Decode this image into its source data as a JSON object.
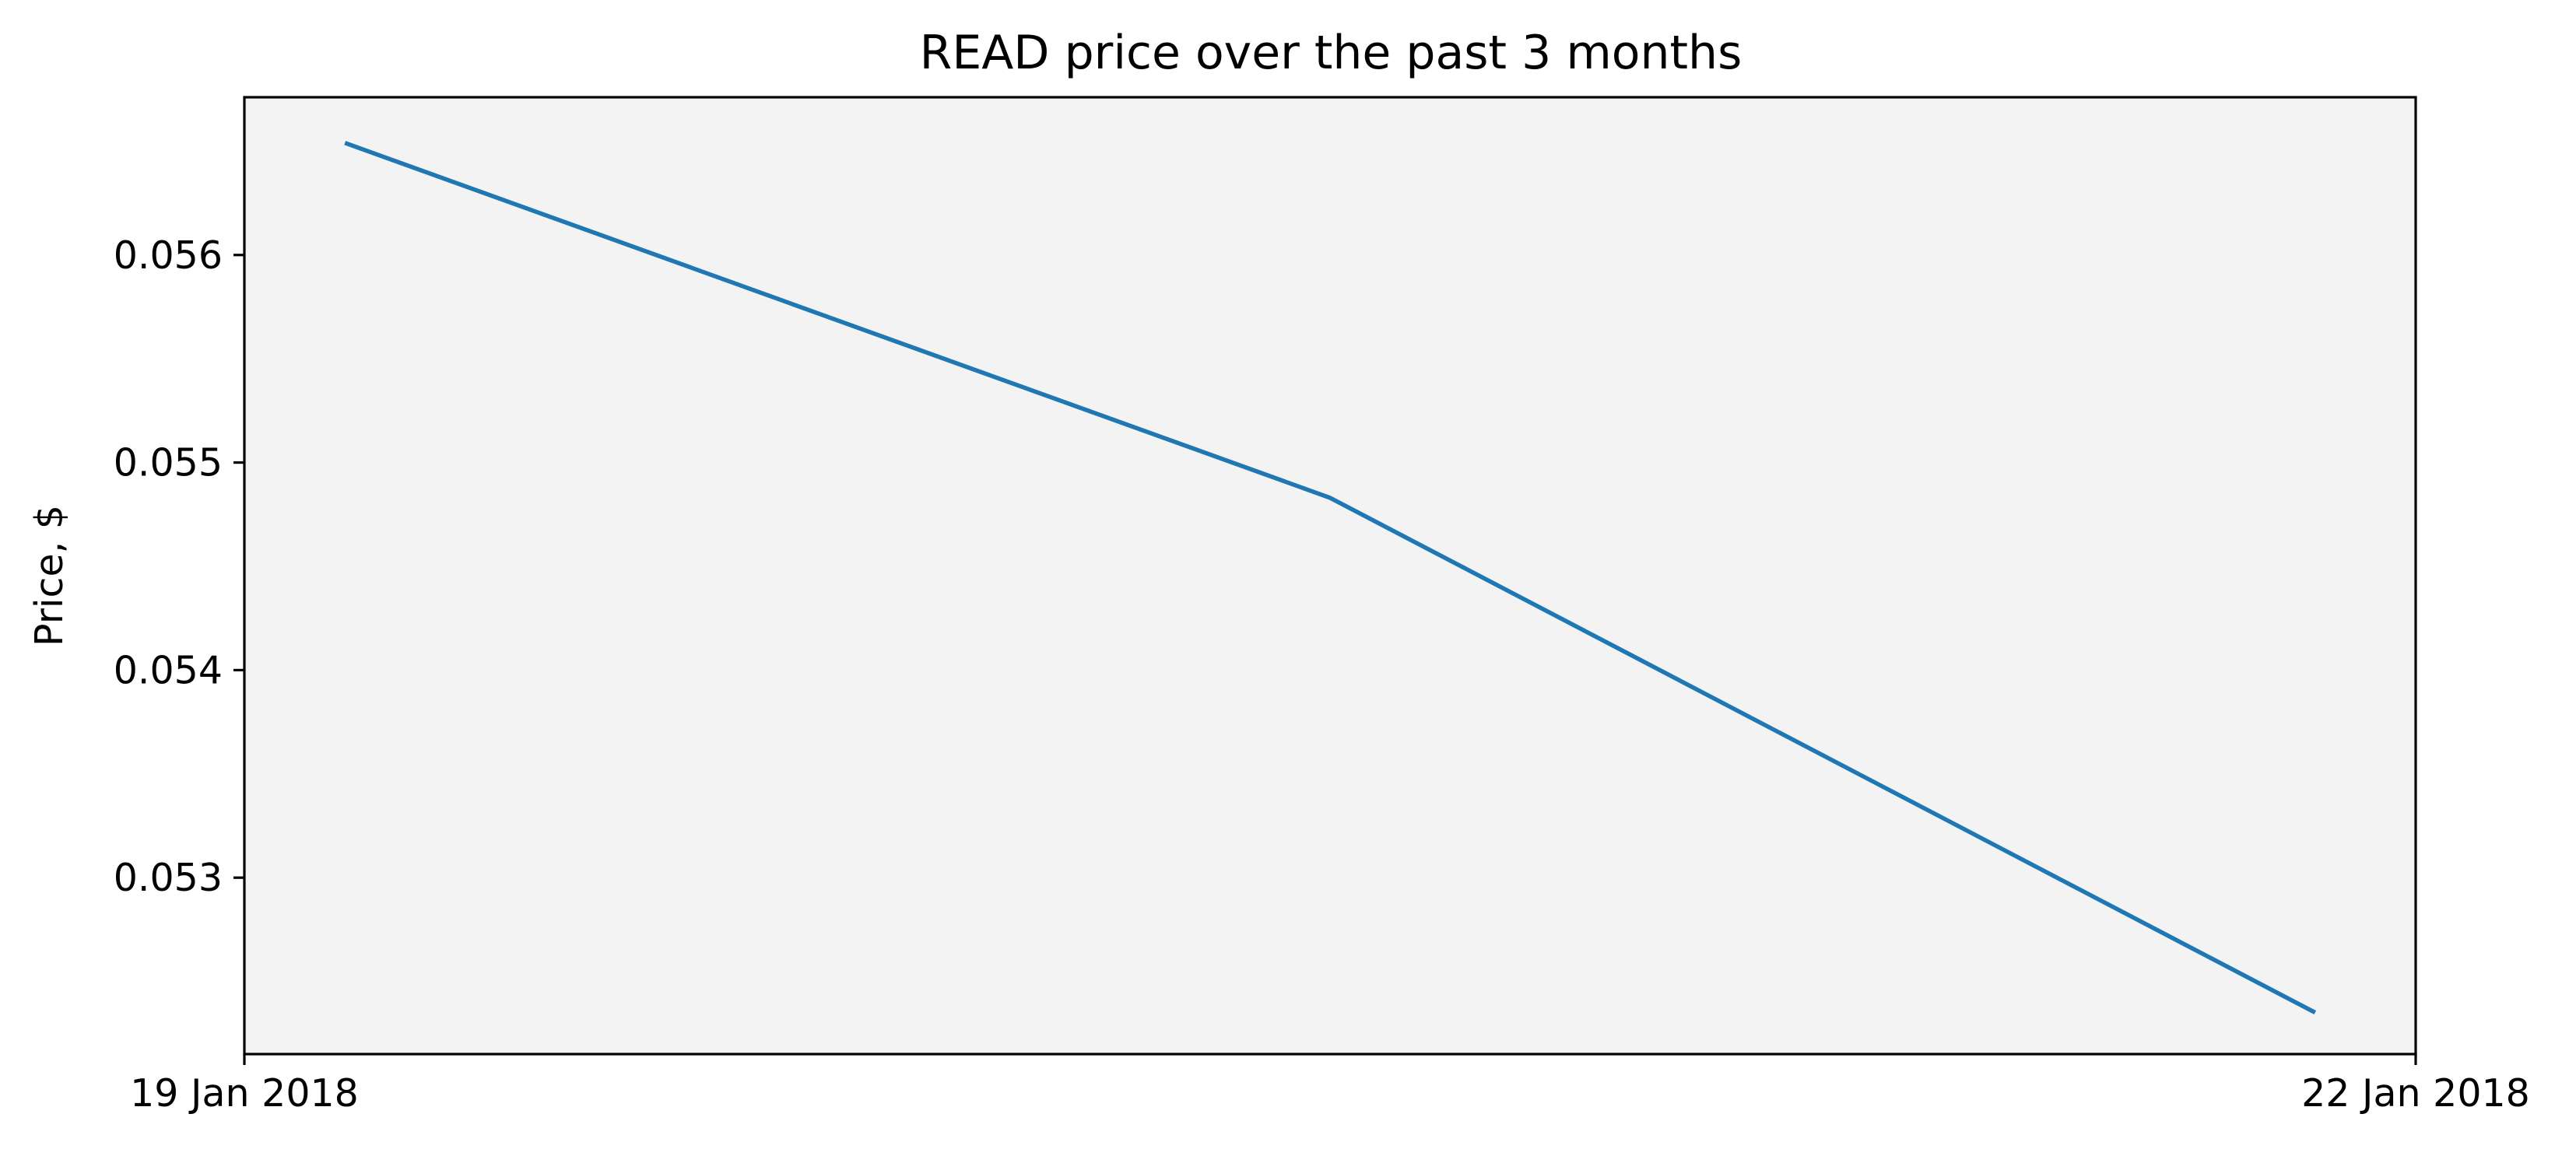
{
  "chart_data": {
    "type": "line",
    "title": "READ price over the past 3 months",
    "xlabel": "",
    "ylabel": "Price, $",
    "x_ticks": [
      "19 Jan 2018",
      "22 Jan 2018"
    ],
    "x_dates": [
      "2018-01-19",
      "2018-01-22"
    ],
    "y_ticks": [
      0.053,
      0.054,
      0.055,
      0.056
    ],
    "y_tick_labels": [
      "0.053",
      "0.054",
      "0.055",
      "0.056"
    ],
    "xlim": [
      "2018-01-19",
      "2018-01-22"
    ],
    "ylim": [
      0.05215,
      0.05676
    ],
    "grid": false,
    "legend": "none",
    "series": [
      {
        "x": [
          "2018-01-19T03:20",
          "2018-01-20T12:00",
          "2018-01-21T20:40"
        ],
        "y": [
          0.05654,
          0.05483,
          0.05235
        ],
        "color": "#1f77b4"
      }
    ],
    "colors": {
      "plot_background": "#f3f3f3",
      "line": "#1f77b4",
      "axes": "#000000"
    }
  }
}
